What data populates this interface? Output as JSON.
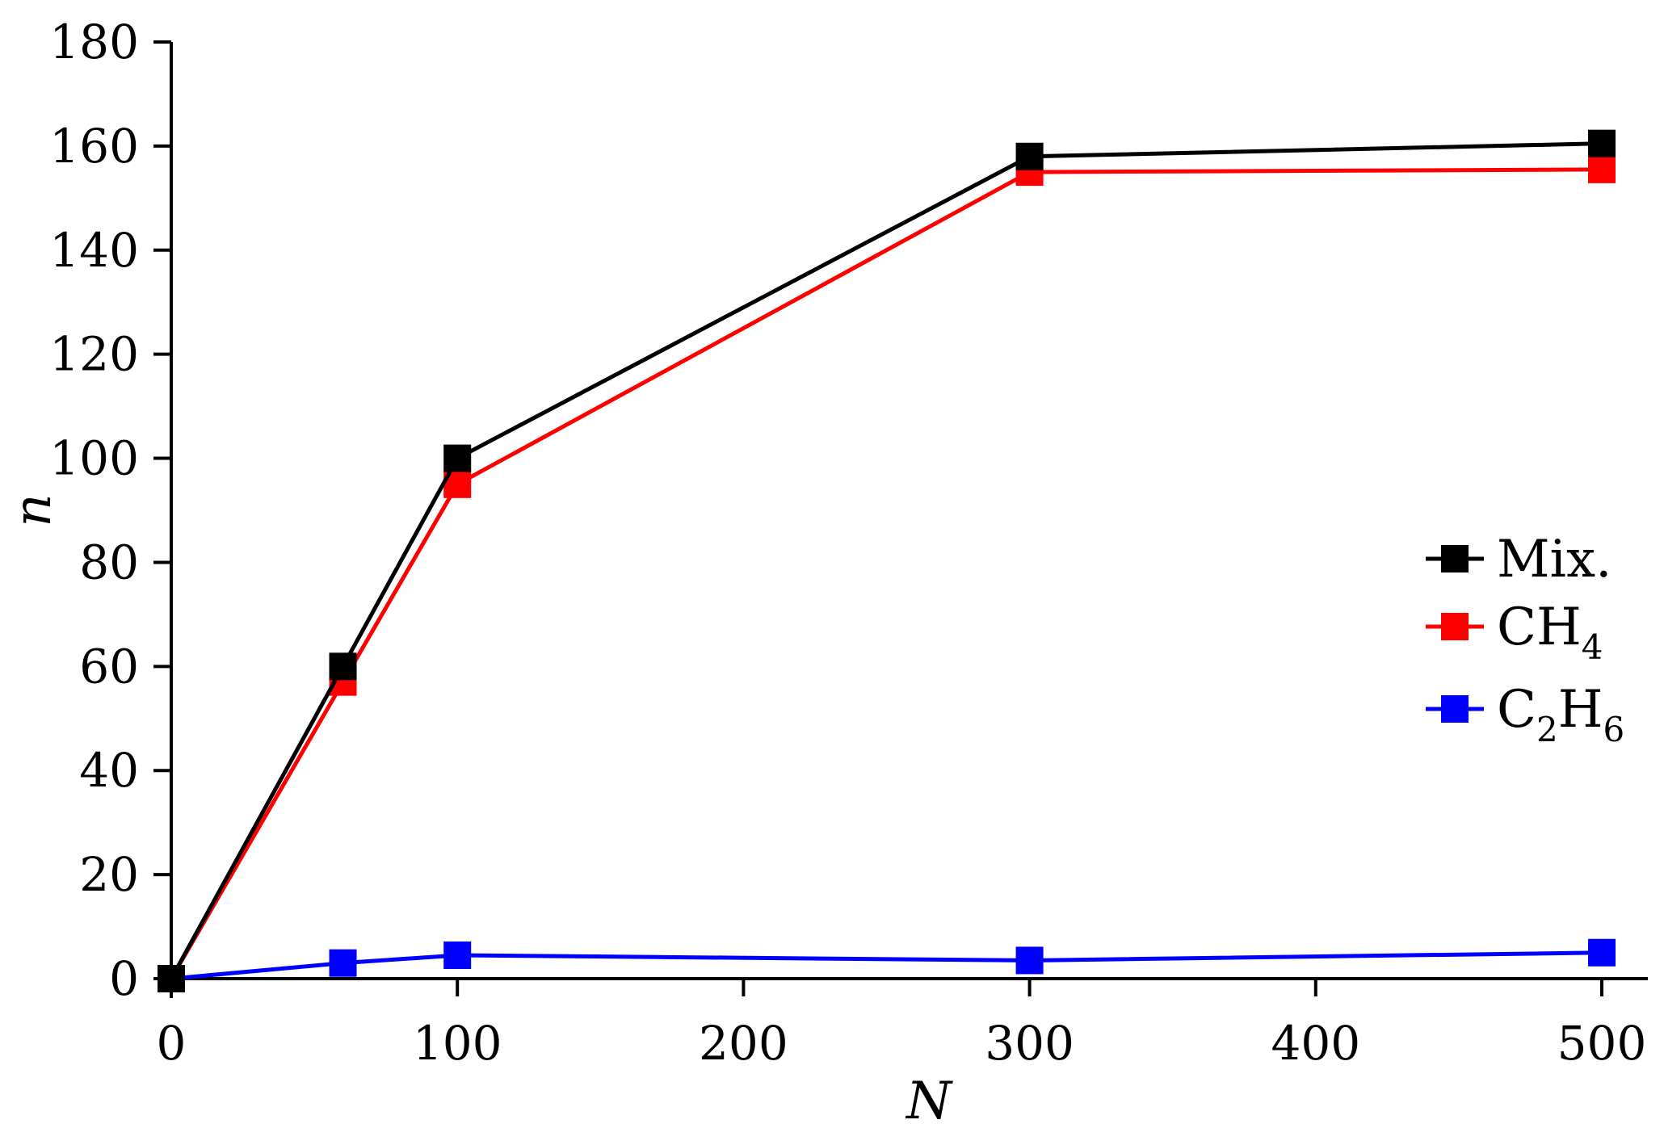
{
  "chart_data": {
    "type": "line",
    "title": "",
    "xlabel": "N",
    "ylabel": "n",
    "xlim": [
      0,
      520
    ],
    "ylim": [
      0,
      180
    ],
    "xticks": [
      0,
      100,
      200,
      300,
      400,
      500
    ],
    "yticks": [
      0,
      20,
      40,
      60,
      80,
      100,
      120,
      140,
      160,
      180
    ],
    "x": [
      0,
      60,
      100,
      300,
      500
    ],
    "grid": false,
    "legend_position": "right",
    "series": [
      {
        "name": "Mix.",
        "label_main": "Mix.",
        "color": "#000000",
        "marker": "square",
        "values": [
          0,
          60,
          100,
          158,
          160.5
        ]
      },
      {
        "name": "CH4",
        "label_main": "CH",
        "label_sub": "4",
        "label_main2": "",
        "label_sub2": "",
        "color": "#ff0000",
        "marker": "square",
        "values": [
          0,
          57,
          95,
          155,
          155.5
        ]
      },
      {
        "name": "C2H6",
        "label_main": "C",
        "label_sub": "2",
        "label_main2": "H",
        "label_sub2": "6",
        "color": "#0000ff",
        "marker": "square",
        "values": [
          0,
          3,
          4.5,
          3.5,
          5
        ]
      }
    ]
  }
}
